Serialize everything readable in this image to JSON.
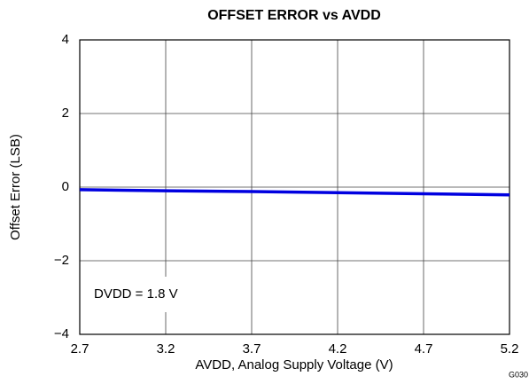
{
  "chart_data": {
    "type": "line",
    "title": "OFFSET ERROR vs AVDD",
    "x_label": "AVDD, Analog Supply Voltage (V)",
    "y_label": "Offset Error (LSB)",
    "annotation": "DVDD = 1.8 V",
    "figure_id": "G030",
    "x": [
      2.7,
      3.2,
      3.7,
      4.2,
      4.7,
      5.2
    ],
    "values": [
      -0.07,
      -0.1,
      -0.12,
      -0.15,
      -0.18,
      -0.21
    ],
    "color": "#0000e0",
    "xlim": [
      2.7,
      5.2
    ],
    "xticks": [
      2.7,
      3.2,
      3.7,
      4.2,
      4.7,
      5.2
    ],
    "ylim": [
      -4,
      4
    ],
    "yticks": [
      4,
      2,
      0,
      {
        "value": -2,
        "label": "−2"
      },
      {
        "value": -4,
        "label": "−4"
      }
    ],
    "grid": true
  }
}
